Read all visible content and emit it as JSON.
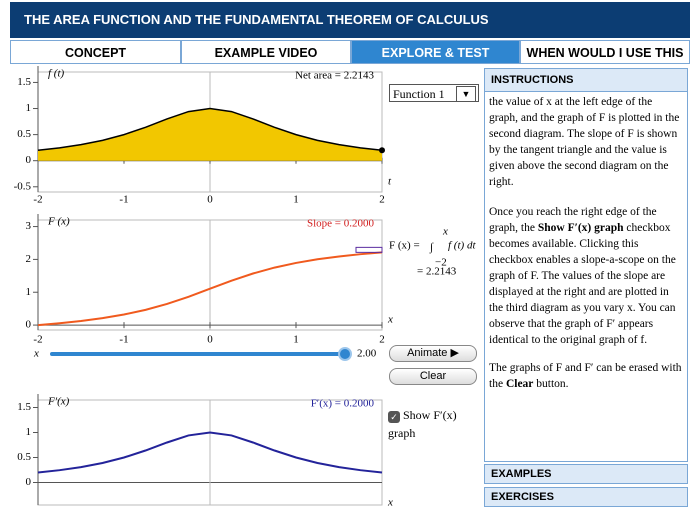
{
  "header": {
    "title": "THE AREA FUNCTION AND THE FUNDAMENTAL THEOREM OF CALCULUS"
  },
  "tabs": [
    "CONCEPT",
    "EXAMPLE VIDEO",
    "EXPLORE & TEST",
    "WHEN WOULD I USE THIS"
  ],
  "active_tab": 2,
  "charts": [
    {
      "type": "area",
      "ylabel": "f (t)",
      "xlabel": "t",
      "annotation": "Net area = 2.2143",
      "color": "#f2c700",
      "x": [
        -2,
        -1.75,
        -1.5,
        -1.25,
        -1,
        -0.75,
        -0.5,
        -0.25,
        0,
        0.25,
        0.5,
        0.75,
        1,
        1.25,
        1.5,
        1.75,
        2
      ],
      "values": [
        0.2,
        0.2462,
        0.3077,
        0.3902,
        0.5,
        0.64,
        0.8,
        0.9412,
        1,
        0.9412,
        0.8,
        0.64,
        0.5,
        0.3902,
        0.3077,
        0.2462,
        0.2
      ],
      "xlim": [
        -2,
        2
      ],
      "ylim": [
        -0.6,
        1.7
      ],
      "xticks": [
        -2,
        -1,
        0,
        1,
        2
      ],
      "yticks": [
        -0.5,
        0,
        0.5,
        1,
        1.5
      ]
    },
    {
      "type": "line",
      "ylabel": "F (x)",
      "xlabel": "x",
      "annotation": "Slope = 0.2000",
      "color": "#f05a1e",
      "x": [
        -2,
        -1.75,
        -1.5,
        -1.25,
        -1,
        -0.75,
        -0.5,
        -0.25,
        0,
        0.25,
        0.5,
        0.75,
        1,
        1.25,
        1.5,
        1.75,
        2
      ],
      "values": [
        0,
        0.0554,
        0.1243,
        0.211,
        0.3217,
        0.4636,
        0.6435,
        0.8621,
        1.1071,
        1.3521,
        1.5707,
        1.7506,
        1.8925,
        2.0032,
        2.0899,
        2.1588,
        2.2143
      ],
      "xlim": [
        -2,
        2
      ],
      "ylim": [
        -0.15,
        3.2
      ],
      "xticks": [
        -2,
        -1,
        0,
        1,
        2
      ],
      "yticks": [
        0,
        1,
        2,
        3
      ]
    },
    {
      "type": "line",
      "ylabel": "F′(x)",
      "xlabel": "x",
      "annotation": "F′(x) = 0.2000",
      "color": "#23239a",
      "x": [
        -2,
        -1.75,
        -1.5,
        -1.25,
        -1,
        -0.75,
        -0.5,
        -0.25,
        0,
        0.25,
        0.5,
        0.75,
        1,
        1.25,
        1.5,
        1.75,
        2
      ],
      "values": [
        0.2,
        0.2462,
        0.3077,
        0.3902,
        0.5,
        0.64,
        0.8,
        0.9412,
        1,
        0.9412,
        0.8,
        0.64,
        0.5,
        0.3902,
        0.3077,
        0.2462,
        0.2
      ],
      "xlim": [
        -2,
        2
      ],
      "ylim": [
        -0.45,
        1.65
      ],
      "xticks": [],
      "yticks": [
        0,
        0.5,
        1,
        1.5
      ]
    }
  ],
  "formula": {
    "lhs": "F (x) =",
    "integral": "∫",
    "upper": "x",
    "lower": "−2",
    "integrand": "f (t) dt",
    "result": "= 2.2143"
  },
  "dropdown": "Function 1",
  "slider": {
    "label": "x",
    "value": 2,
    "value_label": "2.00",
    "min": -2,
    "max": 2
  },
  "buttons": [
    "Animate",
    "Clear"
  ],
  "checkbox": {
    "label": "Show F′(x)",
    "label2": "graph",
    "checked": true
  },
  "instructions": {
    "title": "INSTRUCTIONS",
    "p1": "the value of x at the left edge of the graph, and the graph of F is plotted in the second diagram. The slope of F is shown by the tangent triangle and the value is given above the second diagram on the right.",
    "p2": [
      "Once you reach the right edge of the graph, the ",
      "Show F′(x) graph",
      " checkbox becomes available. Clicking this checkbox enables a slope-a-scope on the graph of F. The values of the slope are displayed at the right and are plotted in the third diagram as you vary x. You can observe that the graph of F′ appears identical to the original graph of f."
    ],
    "p3": [
      "The graphs of F and F′ can be erased with the ",
      "Clear",
      " button."
    ]
  },
  "sections": [
    "EXAMPLES",
    "EXERCISES"
  ]
}
